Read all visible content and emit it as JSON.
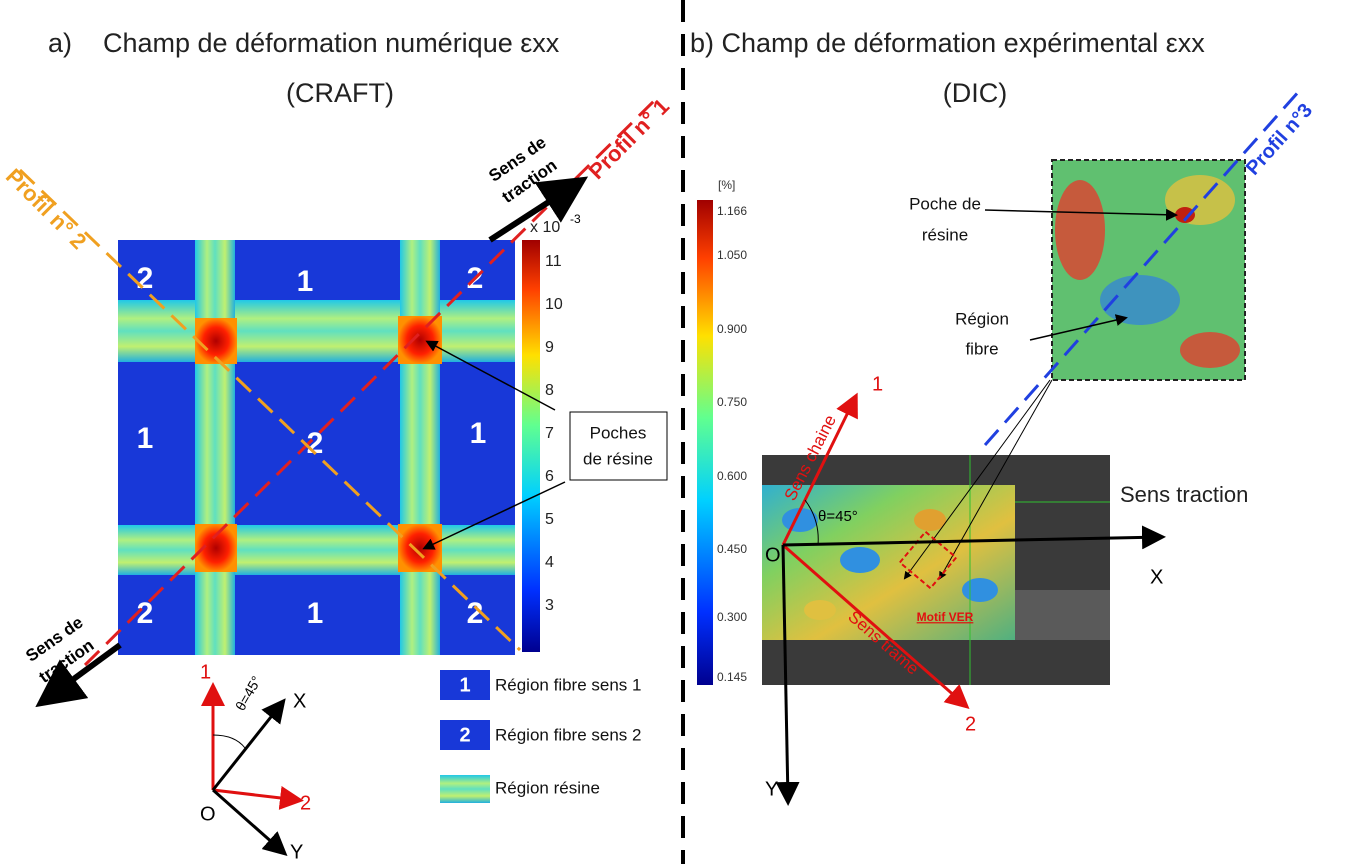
{
  "panel_a": {
    "label": "a)",
    "title": "Champ de déformation numérique εxx",
    "subtitle": "(CRAFT)",
    "colorbar": {
      "unit": "x 10",
      "exponent": "-3",
      "ticks": [
        "11",
        "10",
        "9",
        "8",
        "7",
        "6",
        "5",
        "4",
        "3"
      ]
    },
    "regions": [
      "2",
      "1",
      "2",
      "1",
      "2",
      "1",
      "2",
      "1",
      "2"
    ],
    "profile_1": "Profil n° 1",
    "profile_2": "Profil n° 2",
    "traction_top": [
      "Sens de",
      "traction"
    ],
    "traction_bottom": [
      "Sens de",
      "traction"
    ],
    "callout": [
      "Poches",
      "de résine"
    ],
    "axes": {
      "one": "1",
      "two": "2",
      "x": "X",
      "y": "Y",
      "origin": "O",
      "angle": "θ=45°"
    },
    "legend": [
      {
        "key": "1",
        "text": "Région fibre sens 1"
      },
      {
        "key": "2",
        "text": "Région fibre sens 2"
      },
      {
        "text": "Région résine"
      }
    ]
  },
  "panel_b": {
    "title": "b) Champ de déformation expérimental εxx",
    "subtitle": "(DIC)",
    "colorbar": {
      "unit": "[%]",
      "ticks": [
        "1.166",
        "1.050",
        "0.900",
        "0.750",
        "0.600",
        "0.450",
        "0.300",
        "0.145"
      ]
    },
    "profile_3": "Profil n°3",
    "resin_pocket": [
      "Poche de",
      "résine"
    ],
    "fiber_region": [
      "Région",
      "fibre"
    ],
    "traction": "Sens traction",
    "warp": "Sens chaine",
    "weft": "Sens trame",
    "angle": "θ=45°",
    "motif": "Motif VER",
    "axes": {
      "one": "1",
      "two": "2",
      "x": "X",
      "y": "Y",
      "origin": "O"
    }
  }
}
